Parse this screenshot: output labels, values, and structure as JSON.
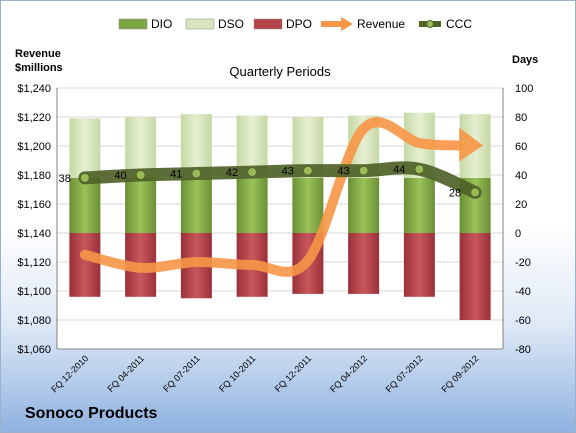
{
  "chart_data": {
    "type": "bar",
    "title": "Quarterly Periods",
    "company": "Sonoco Products",
    "left_axis_label": [
      "Revenue",
      "$millions"
    ],
    "right_axis_label": "Days",
    "left_ylim": [
      1060,
      1240
    ],
    "left_ticks": [
      "$1,060",
      "$1,080",
      "$1,100",
      "$1,120",
      "$1,140",
      "$1,160",
      "$1,180",
      "$1,200",
      "$1,220",
      "$1,240"
    ],
    "right_ylim": [
      -80,
      100
    ],
    "right_ticks": [
      "-80",
      "-60",
      "-40",
      "-20",
      "0",
      "20",
      "40",
      "60",
      "80",
      "100"
    ],
    "categories": [
      "FQ 12-2010",
      "FQ 04-2011",
      "FQ 07-2011",
      "FQ 10-2011",
      "FQ 12-2011",
      "FQ 04-2012",
      "FQ 07-2012",
      "FQ 09-2012"
    ],
    "legend": [
      "DIO",
      "DSO",
      "DPO",
      "Revenue",
      "CCC"
    ],
    "colors": {
      "DIO": "#7ea342",
      "DSO": "#d7e4bd",
      "DPO": "#b5434a",
      "Revenue": "#f79646",
      "CCC": "#4f6228"
    },
    "series": [
      {
        "name": "DIO",
        "axis": "right",
        "values": [
          38,
          38,
          38,
          38,
          38,
          38,
          38,
          38
        ]
      },
      {
        "name": "DSO",
        "axis": "right",
        "values": [
          41,
          42,
          44,
          43,
          42,
          43,
          45,
          44
        ]
      },
      {
        "name": "DPO",
        "axis": "right",
        "values": [
          -44,
          -44,
          -45,
          -44,
          -42,
          -42,
          -44,
          -60
        ]
      },
      {
        "name": "Revenue",
        "axis": "left",
        "values": [
          1125,
          1116,
          1120,
          1118,
          1121,
          1212,
          1202,
          1199
        ]
      },
      {
        "name": "CCC",
        "axis": "right",
        "values": [
          38,
          40,
          41,
          42,
          43,
          43,
          44,
          28
        ]
      }
    ],
    "ccc_labels": [
      "38",
      "40",
      "41",
      "42",
      "43",
      "43",
      "44",
      "28"
    ]
  }
}
